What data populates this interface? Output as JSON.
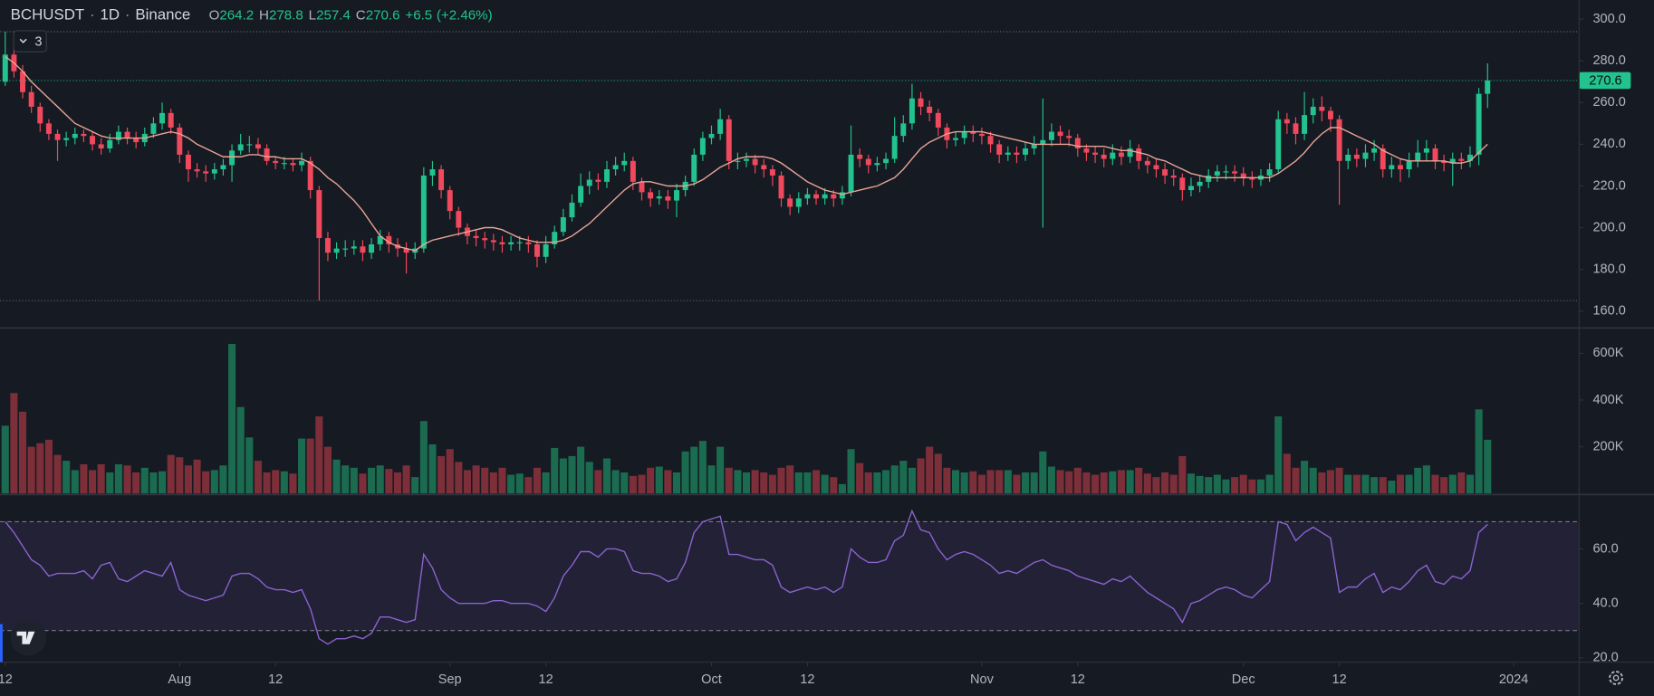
{
  "header": {
    "symbol": "BCHUSDT",
    "separator": "·",
    "interval": "1D",
    "exchange": "Binance",
    "o_label": "O",
    "h_label": "H",
    "l_label": "L",
    "c_label": "C",
    "change": "+6.5",
    "change_pct": "(+2.46%)",
    "indicator_count": "3"
  },
  "chart_data": {
    "type": "candlestick",
    "open": [
      270,
      283,
      275,
      265,
      258,
      250,
      245,
      242,
      243,
      245,
      244,
      240,
      238,
      242,
      246,
      243,
      241,
      245,
      250,
      255,
      248,
      235,
      228,
      227,
      226,
      228,
      230,
      237,
      240,
      240,
      238,
      232,
      231,
      231,
      230,
      232,
      218,
      195,
      188,
      190,
      190,
      191,
      188,
      192,
      196,
      192,
      190,
      188,
      190,
      225,
      228,
      218,
      208,
      200,
      196,
      195,
      194,
      193,
      192,
      193,
      193,
      192,
      186,
      192,
      198,
      205,
      212,
      220,
      223,
      222,
      228,
      230,
      232,
      222,
      217,
      214,
      215,
      213,
      218,
      222,
      235,
      243,
      245,
      252,
      232,
      232,
      233,
      230,
      228,
      225,
      214,
      210,
      214,
      216,
      214,
      216,
      214,
      217,
      235,
      233,
      230,
      231,
      233,
      244,
      250,
      262,
      258,
      255,
      248,
      242,
      243,
      246,
      245,
      244,
      240,
      235,
      236,
      235,
      238,
      240,
      242,
      246,
      244,
      243,
      238,
      236,
      235,
      233,
      236,
      234,
      238,
      232,
      230,
      228,
      225,
      224,
      218,
      220,
      222,
      225,
      227,
      227,
      226,
      224,
      223,
      225,
      228,
      252,
      250,
      245,
      254,
      258,
      256,
      252,
      232,
      235,
      233,
      236,
      238,
      228,
      230,
      228,
      232,
      236,
      238,
      232,
      231,
      233,
      232,
      235,
      264.2
    ],
    "high": [
      294,
      287,
      278,
      268,
      260,
      252,
      247,
      246,
      248,
      247,
      246,
      243,
      245,
      249,
      248,
      246,
      248,
      253,
      260,
      257,
      250,
      237,
      231,
      230,
      231,
      233,
      240,
      245,
      244,
      243,
      240,
      234,
      234,
      233,
      236,
      234,
      220,
      198,
      193,
      194,
      194,
      194,
      195,
      199,
      198,
      195,
      193,
      193,
      229,
      232,
      230,
      220,
      210,
      202,
      199,
      198,
      197,
      196,
      196,
      196,
      196,
      194,
      196,
      201,
      209,
      216,
      226,
      227,
      226,
      232,
      234,
      236,
      234,
      224,
      219,
      218,
      218,
      221,
      225,
      238,
      246,
      249,
      257,
      254,
      236,
      236,
      235,
      233,
      230,
      227,
      216,
      217,
      219,
      218,
      219,
      218,
      220,
      249,
      238,
      235,
      234,
      236,
      253,
      254,
      269,
      265,
      261,
      257,
      250,
      246,
      249,
      249,
      248,
      246,
      242,
      239,
      239,
      241,
      244,
      262,
      250,
      249,
      247,
      245,
      240,
      239,
      238,
      240,
      239,
      242,
      240,
      234,
      233,
      231,
      228,
      226,
      224,
      225,
      228,
      230,
      230,
      230,
      229,
      227,
      228,
      231,
      256,
      255,
      253,
      265,
      262,
      263,
      258,
      254,
      238,
      238,
      240,
      242,
      240,
      234,
      233,
      236,
      242,
      242,
      240,
      235,
      236,
      236,
      239,
      267,
      278.8
    ],
    "low": [
      268,
      272,
      262,
      255,
      246,
      242,
      232,
      239,
      240,
      241,
      237,
      235,
      236,
      240,
      240,
      238,
      239,
      243,
      247,
      245,
      231,
      222,
      224,
      222,
      223,
      225,
      222,
      235,
      236,
      235,
      230,
      228,
      228,
      227,
      227,
      214,
      165,
      184,
      185,
      186,
      187,
      184,
      185,
      189,
      188,
      186,
      178,
      185,
      188,
      220,
      214,
      204,
      196,
      192,
      191,
      190,
      189,
      188,
      189,
      189,
      188,
      181,
      183,
      190,
      196,
      203,
      210,
      216,
      218,
      219,
      225,
      227,
      218,
      213,
      210,
      211,
      209,
      205,
      215,
      220,
      232,
      240,
      242,
      228,
      228,
      229,
      226,
      224,
      220,
      210,
      206,
      207,
      211,
      211,
      211,
      210,
      211,
      215,
      229,
      226,
      227,
      228,
      231,
      241,
      247,
      254,
      251,
      244,
      238,
      239,
      240,
      241,
      240,
      236,
      231,
      232,
      231,
      232,
      235,
      200,
      239,
      240,
      239,
      234,
      232,
      231,
      229,
      230,
      230,
      231,
      228,
      226,
      224,
      221,
      220,
      213,
      215,
      217,
      219,
      222,
      223,
      222,
      220,
      219,
      220,
      222,
      226,
      245,
      240,
      242,
      250,
      251,
      246,
      211,
      228,
      229,
      229,
      232,
      224,
      224,
      222,
      224,
      229,
      232,
      228,
      227,
      220,
      228,
      229,
      230,
      257.4
    ],
    "close": [
      283,
      275,
      265,
      258,
      250,
      245,
      242,
      243,
      245,
      244,
      240,
      238,
      242,
      246,
      243,
      241,
      245,
      250,
      255,
      248,
      235,
      228,
      227,
      226,
      228,
      230,
      237,
      240,
      240,
      238,
      232,
      231,
      231,
      230,
      232,
      218,
      195,
      188,
      190,
      190,
      191,
      188,
      192,
      196,
      192,
      190,
      188,
      190,
      225,
      228,
      218,
      208,
      200,
      196,
      195,
      194,
      193,
      192,
      193,
      193,
      192,
      186,
      192,
      198,
      205,
      212,
      220,
      223,
      222,
      228,
      230,
      232,
      222,
      217,
      214,
      215,
      213,
      218,
      222,
      235,
      243,
      245,
      252,
      232,
      232,
      233,
      230,
      228,
      225,
      214,
      210,
      214,
      216,
      214,
      216,
      214,
      217,
      235,
      233,
      230,
      231,
      233,
      244,
      250,
      262,
      258,
      255,
      248,
      242,
      243,
      246,
      245,
      244,
      240,
      235,
      236,
      235,
      238,
      240,
      242,
      246,
      244,
      243,
      238,
      236,
      235,
      233,
      236,
      234,
      238,
      232,
      230,
      228,
      225,
      224,
      218,
      220,
      222,
      225,
      227,
      227,
      226,
      224,
      223,
      225,
      228,
      252,
      250,
      245,
      254,
      258,
      256,
      252,
      232,
      235,
      233,
      236,
      238,
      228,
      230,
      228,
      232,
      236,
      238,
      232,
      231,
      233,
      232,
      235,
      264.2,
      270.6
    ],
    "ma": [
      282,
      279,
      275,
      270,
      266,
      262,
      258,
      254,
      250,
      248,
      246,
      244,
      243,
      243,
      243,
      243,
      243,
      244,
      245,
      246,
      245,
      243,
      240,
      238,
      236,
      234,
      234,
      234,
      235,
      235,
      234,
      234,
      233,
      233,
      233,
      231,
      228,
      224,
      221,
      217,
      213,
      208,
      202,
      196,
      193,
      191,
      190,
      189,
      192,
      194,
      195,
      196,
      197,
      198,
      199,
      200,
      200,
      199,
      197,
      195,
      194,
      193,
      193,
      193,
      194,
      196,
      199,
      202,
      206,
      210,
      214,
      218,
      221,
      222,
      222,
      221,
      220,
      220,
      220,
      221,
      223,
      226,
      229,
      231,
      233,
      234,
      234,
      234,
      233,
      231,
      228,
      225,
      222,
      220,
      218,
      217,
      216,
      217,
      218,
      219,
      220,
      222,
      224,
      228,
      233,
      238,
      241,
      243,
      245,
      246,
      246,
      246,
      246,
      245,
      244,
      243,
      242,
      241,
      240,
      240,
      240,
      240,
      240,
      239,
      239,
      239,
      239,
      238,
      237,
      237,
      236,
      235,
      233,
      232,
      230,
      228,
      226,
      225,
      224,
      224,
      224,
      224,
      224,
      224,
      224,
      224,
      226,
      229,
      232,
      236,
      241,
      245,
      248,
      248,
      246,
      244,
      242,
      240,
      237,
      235,
      233,
      232,
      232,
      232,
      232,
      232,
      231,
      231,
      232,
      236,
      240
    ],
    "volume": [
      290000,
      430000,
      350000,
      200000,
      215000,
      230000,
      165000,
      140000,
      100000,
      125000,
      100000,
      125000,
      90000,
      125000,
      120000,
      90000,
      110000,
      90000,
      95000,
      165000,
      155000,
      120000,
      145000,
      95000,
      100000,
      120000,
      640000,
      370000,
      240000,
      140000,
      90000,
      100000,
      95000,
      85000,
      235000,
      235000,
      330000,
      200000,
      145000,
      120000,
      110000,
      85000,
      110000,
      120000,
      105000,
      90000,
      120000,
      70000,
      310000,
      210000,
      160000,
      190000,
      135000,
      100000,
      120000,
      110000,
      90000,
      110000,
      80000,
      85000,
      70000,
      110000,
      90000,
      195000,
      150000,
      160000,
      200000,
      135000,
      100000,
      150000,
      100000,
      90000,
      75000,
      80000,
      110000,
      115000,
      100000,
      90000,
      180000,
      200000,
      225000,
      120000,
      200000,
      110000,
      100000,
      90000,
      100000,
      90000,
      80000,
      110000,
      120000,
      90000,
      90000,
      100000,
      80000,
      70000,
      40000,
      190000,
      130000,
      90000,
      90000,
      100000,
      120000,
      140000,
      110000,
      150000,
      200000,
      170000,
      110000,
      100000,
      90000,
      95000,
      80000,
      100000,
      100000,
      100000,
      80000,
      90000,
      90000,
      180000,
      115000,
      100000,
      95000,
      110000,
      90000,
      80000,
      90000,
      95000,
      100000,
      100000,
      110000,
      85000,
      70000,
      90000,
      80000,
      160000,
      85000,
      75000,
      70000,
      80000,
      60000,
      70000,
      80000,
      60000,
      60000,
      80000,
      330000,
      170000,
      110000,
      140000,
      110000,
      90000,
      100000,
      110000,
      80000,
      80000,
      80000,
      70000,
      70000,
      55000,
      80000,
      80000,
      110000,
      120000,
      80000,
      70000,
      80000,
      90000,
      80000,
      360000,
      230000
    ],
    "rsi": [
      70,
      66,
      61,
      56,
      54,
      50,
      51,
      51,
      51,
      52,
      49,
      54,
      55,
      49,
      48,
      50,
      52,
      51,
      50,
      55,
      45,
      43,
      42,
      41,
      42,
      43,
      50,
      51,
      51,
      49,
      46,
      45,
      45,
      44,
      45,
      38,
      27,
      25,
      27,
      27,
      28,
      27,
      29,
      35,
      35,
      34,
      33,
      34,
      58,
      53,
      45,
      42,
      40,
      40,
      40,
      40,
      41,
      41,
      40,
      40,
      40,
      39,
      37,
      42,
      50,
      54,
      59,
      59,
      57,
      60,
      60,
      59,
      52,
      51,
      51,
      50,
      48,
      49,
      55,
      66,
      70,
      71,
      72,
      58,
      58,
      57,
      56,
      56,
      54,
      46,
      44,
      45,
      46,
      45,
      46,
      44,
      46,
      60,
      57,
      55,
      55,
      56,
      63,
      65,
      74,
      67,
      66,
      60,
      56,
      58,
      59,
      58,
      56,
      54,
      51,
      52,
      51,
      53,
      55,
      56,
      54,
      53,
      52,
      50,
      49,
      48,
      47,
      49,
      48,
      50,
      47,
      44,
      42,
      40,
      38,
      33,
      40,
      41,
      43,
      45,
      46,
      45,
      43,
      42,
      45,
      48,
      70,
      69,
      63,
      66,
      68,
      66,
      64,
      44,
      46,
      46,
      49,
      51,
      44,
      46,
      45,
      48,
      52,
      54,
      48,
      47,
      50,
      49,
      52,
      66,
      69
    ],
    "xlim": [
      -0.6,
      180.5
    ],
    "xticks": [
      {
        "value": 0,
        "label": "12"
      },
      {
        "value": 20,
        "label": "Aug"
      },
      {
        "value": 31,
        "label": "12"
      },
      {
        "value": 51,
        "label": "Sep"
      },
      {
        "value": 62,
        "label": "12"
      },
      {
        "value": 81,
        "label": "Oct"
      },
      {
        "value": 92,
        "label": "12"
      },
      {
        "value": 112,
        "label": "Nov"
      },
      {
        "value": 123,
        "label": "12"
      },
      {
        "value": 142,
        "label": "Dec"
      },
      {
        "value": 153,
        "label": "12"
      },
      {
        "value": 173,
        "label": "2024"
      }
    ],
    "ylim": [
      152.4,
      309.1
    ],
    "yticks": [
      {
        "value": 160,
        "label": "160.0"
      },
      {
        "value": 180,
        "label": "180.0"
      },
      {
        "value": 200,
        "label": "200.0"
      },
      {
        "value": 220,
        "label": "220.0"
      },
      {
        "value": 240,
        "label": "240.0"
      },
      {
        "value": 260,
        "label": "260.0"
      },
      {
        "value": 280,
        "label": "280.0"
      },
      {
        "value": 300,
        "label": "300.0"
      }
    ],
    "volume_ylim": [
      0,
      704000
    ],
    "volume_ticks": [
      {
        "value": 200000,
        "label": "200K"
      },
      {
        "value": 400000,
        "label": "400K"
      },
      {
        "value": 600000,
        "label": "600K"
      }
    ],
    "rsi_ylim": [
      18.8,
      79.6
    ],
    "rsi_ticks": [
      {
        "value": 20,
        "label": "20.0"
      },
      {
        "value": 40,
        "label": "40.0"
      },
      {
        "value": 60,
        "label": "60.0"
      }
    ],
    "rsi_bands": [
      30,
      70
    ],
    "up_color": "#22c38e",
    "down_color": "#f0485c",
    "volume_up_color": "#1b6b50",
    "volume_down_color": "#7c2e39",
    "ma_color": "#e8a596",
    "rsi_color": "#8b63d0"
  }
}
